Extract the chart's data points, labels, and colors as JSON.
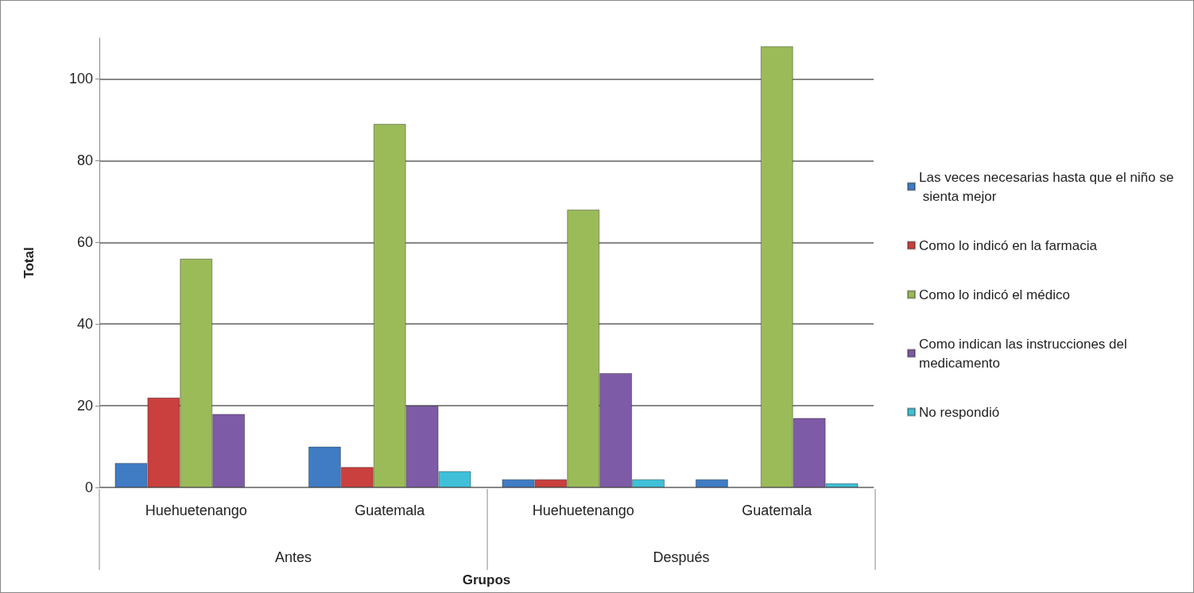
{
  "chart_data": {
    "type": "bar",
    "xlabel": "Grupos",
    "ylabel": "Total",
    "categories": [
      "Huehuetenango",
      "Guatemala",
      "Huehuetenango",
      "Guatemala"
    ],
    "annotations": [
      "Antes",
      "Después"
    ],
    "series": [
      {
        "name": "Las veces necesarias hasta que el niño se sienta mejor",
        "color": "#3f7cc4",
        "values": [
          6,
          10,
          2,
          2
        ]
      },
      {
        "name": "Como lo indicó en la farmacia",
        "color": "#c9403e",
        "values": [
          22,
          5,
          2,
          null
        ]
      },
      {
        "name": "Como lo indicó el médico",
        "color": "#9bbb59",
        "values": [
          56,
          89,
          68,
          108
        ]
      },
      {
        "name": "Como indican las instrucciones del medicamento",
        "color": "#7d5ba6",
        "values": [
          18,
          20,
          28,
          17
        ]
      },
      {
        "name": "No respondió",
        "color": "#3fc0d8",
        "values": [
          null,
          4,
          2,
          1
        ]
      }
    ],
    "ylim": [
      0,
      110
    ],
    "yticks": [
      0,
      20,
      40,
      60,
      80,
      100
    ],
    "grid": "y",
    "legend": "right"
  }
}
